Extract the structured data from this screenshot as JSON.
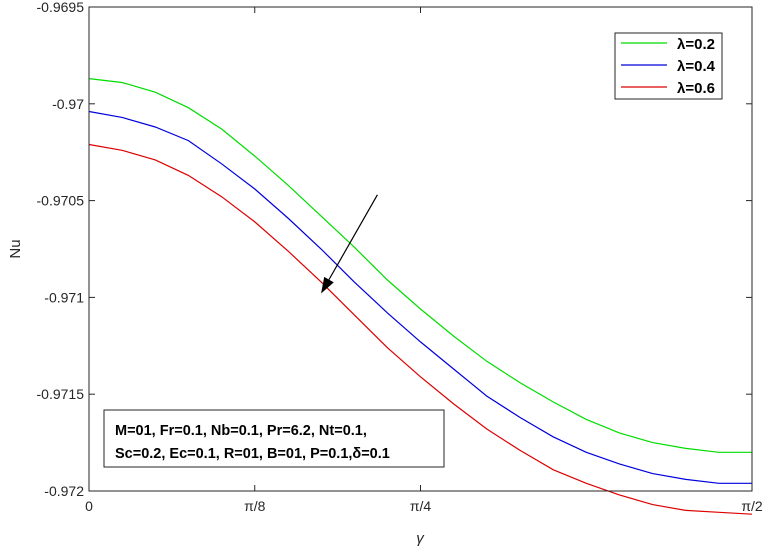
{
  "chart_data": {
    "type": "line",
    "xlabel": "γ",
    "ylabel": "Nu",
    "xlim": [
      0,
      1.5708
    ],
    "ylim": [
      -0.972,
      -0.9695
    ],
    "x_ticks": [
      {
        "value": 0,
        "label": "0"
      },
      {
        "value": 0.3927,
        "label": "π/8"
      },
      {
        "value": 0.7854,
        "label": "π/4"
      },
      {
        "value": 1.5708,
        "label": "π/2"
      }
    ],
    "y_ticks": [
      {
        "value": -0.9695,
        "label": "-0.9695"
      },
      {
        "value": -0.97,
        "label": "-0.97"
      },
      {
        "value": -0.9705,
        "label": "-0.9705"
      },
      {
        "value": -0.971,
        "label": "-0.971"
      },
      {
        "value": -0.9715,
        "label": "-0.9715"
      },
      {
        "value": -0.972,
        "label": "-0.972"
      }
    ],
    "x": [
      0,
      0.0785,
      0.1571,
      0.2356,
      0.3142,
      0.3927,
      0.4712,
      0.5498,
      0.6283,
      0.7069,
      0.7854,
      0.8639,
      0.9425,
      1.021,
      1.0996,
      1.1781,
      1.2566,
      1.3352,
      1.4137,
      1.4923,
      1.5708
    ],
    "series": [
      {
        "name": "λ=0.2",
        "color": "#00dd00",
        "values": [
          -0.96987,
          -0.96989,
          -0.96994,
          -0.97002,
          -0.97013,
          -0.97027,
          -0.97042,
          -0.97058,
          -0.97074,
          -0.97091,
          -0.97106,
          -0.9712,
          -0.97133,
          -0.97144,
          -0.97154,
          -0.97163,
          -0.9717,
          -0.97175,
          -0.97178,
          -0.9718,
          -0.9718
        ]
      },
      {
        "name": "λ=0.4",
        "color": "#0000dd",
        "values": [
          -0.97004,
          -0.97007,
          -0.97012,
          -0.97019,
          -0.97031,
          -0.97044,
          -0.97059,
          -0.97075,
          -0.97092,
          -0.97108,
          -0.97123,
          -0.97137,
          -0.97151,
          -0.97162,
          -0.97172,
          -0.9718,
          -0.97186,
          -0.97191,
          -0.97194,
          -0.97196,
          -0.97196
        ]
      },
      {
        "name": "λ=0.6",
        "color": "#dd0000",
        "values": [
          -0.97021,
          -0.97024,
          -0.97029,
          -0.97037,
          -0.97048,
          -0.97061,
          -0.97076,
          -0.97092,
          -0.97109,
          -0.97126,
          -0.97141,
          -0.97155,
          -0.97168,
          -0.97179,
          -0.97189,
          -0.97196,
          -0.97202,
          -0.97207,
          -0.9721,
          -0.97211,
          -0.97212
        ]
      }
    ],
    "legend_position": "top-right",
    "grid": false,
    "annotation_lines": [
      "M=01, Fr=0.1, Nb=0.1, Pr=6.2, Nt=0.1,",
      "Sc=0.2, Ec=0.1, R=01, B=01, P=0.1,δ=0.1"
    ],
    "arrow": {
      "from": [
        0.6833,
        -0.97047
      ],
      "to": [
        0.5498,
        -0.97098
      ]
    }
  }
}
